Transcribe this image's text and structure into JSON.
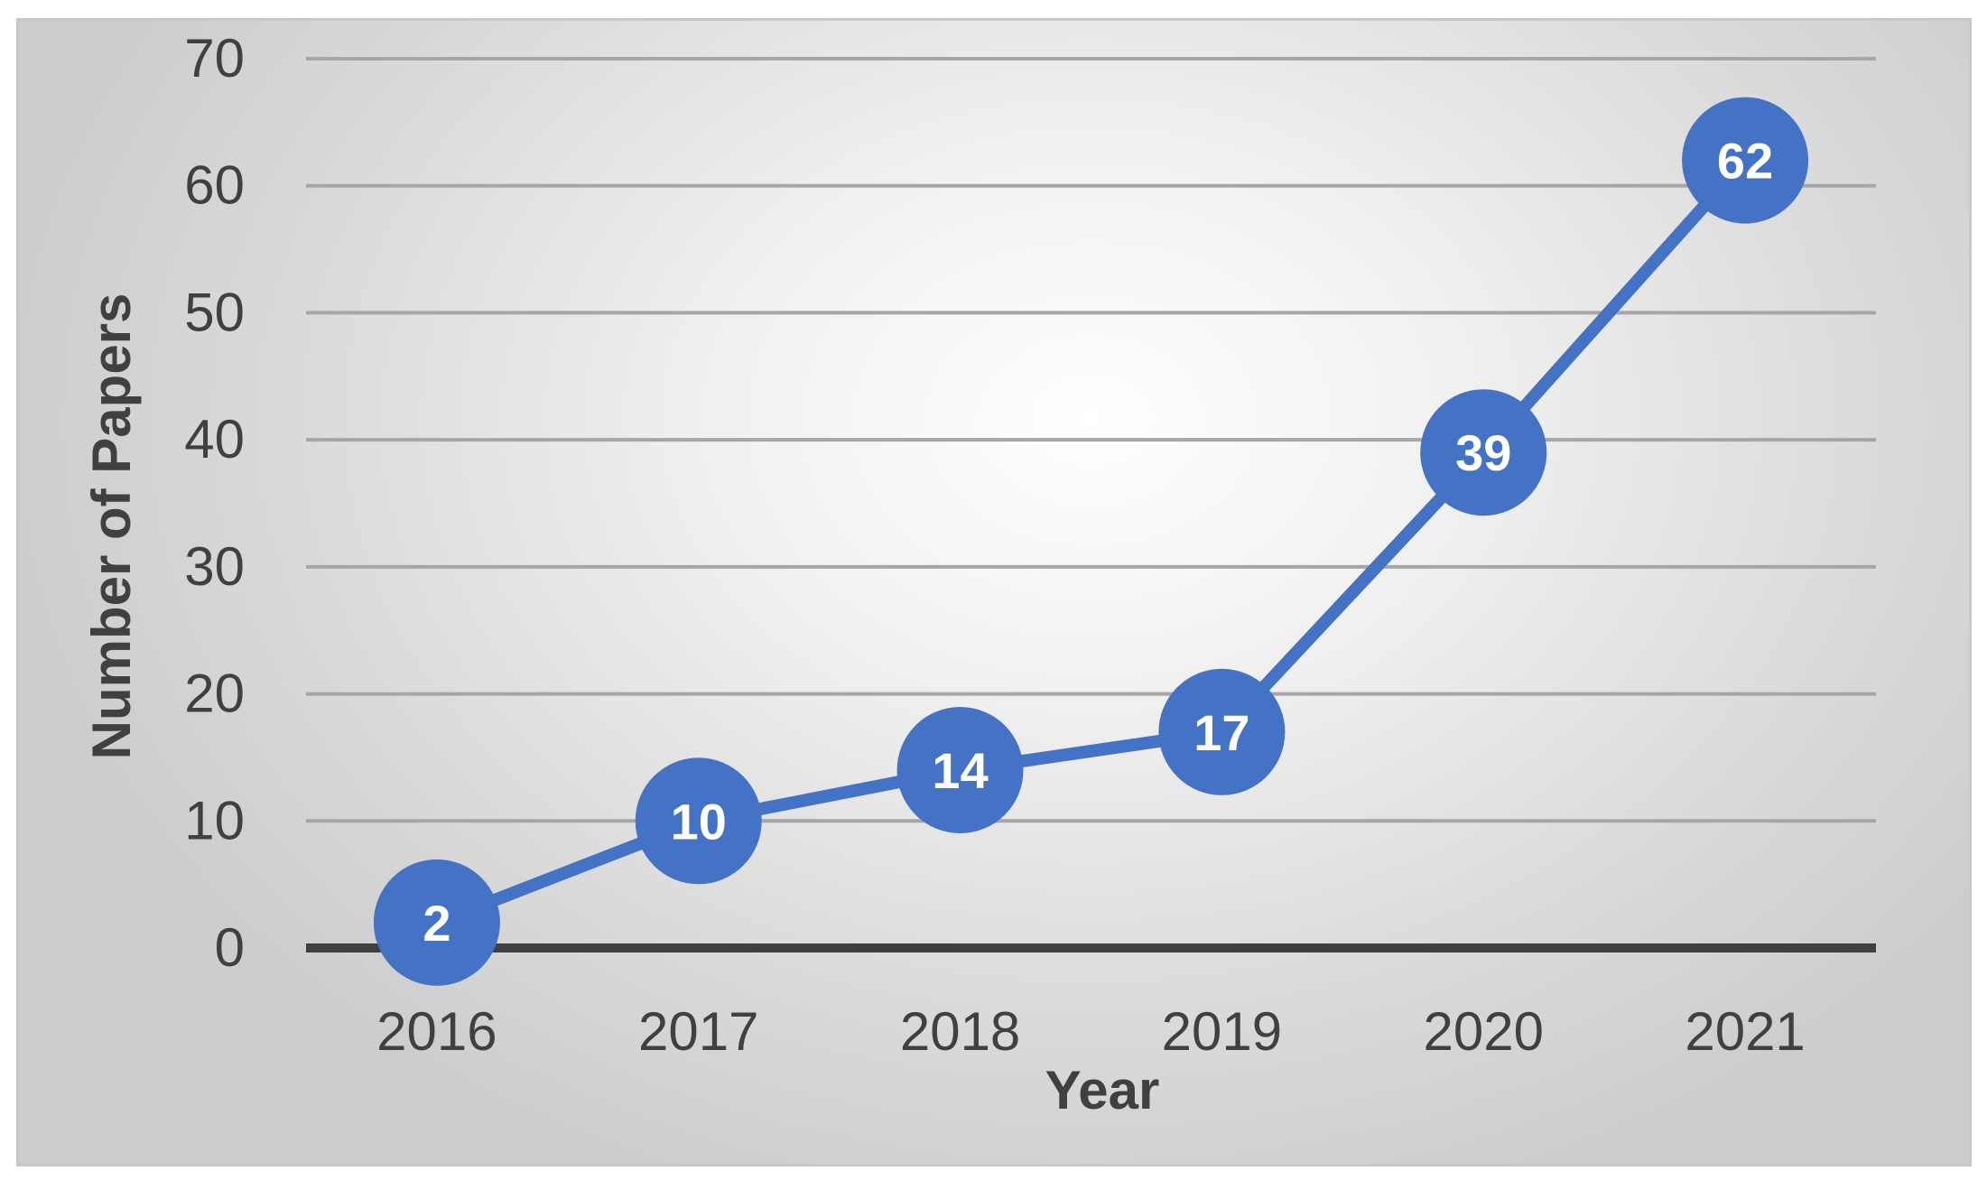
{
  "chart_data": {
    "type": "line",
    "title": "",
    "xlabel": "Year",
    "ylabel": "Number of Papers",
    "x": [
      "2016",
      "2017",
      "2018",
      "2019",
      "2020",
      "2021"
    ],
    "series": [
      {
        "values": [
          2,
          10,
          14,
          17,
          39,
          62
        ],
        "data_labels": [
          "2",
          "10",
          "14",
          "17",
          "39",
          "62"
        ],
        "color": "#4472c4"
      }
    ],
    "ylim": [
      0,
      70
    ],
    "yticks": [
      "0",
      "10",
      "20",
      "30",
      "40",
      "50",
      "60",
      "70"
    ],
    "grid": true,
    "legend": "none"
  }
}
